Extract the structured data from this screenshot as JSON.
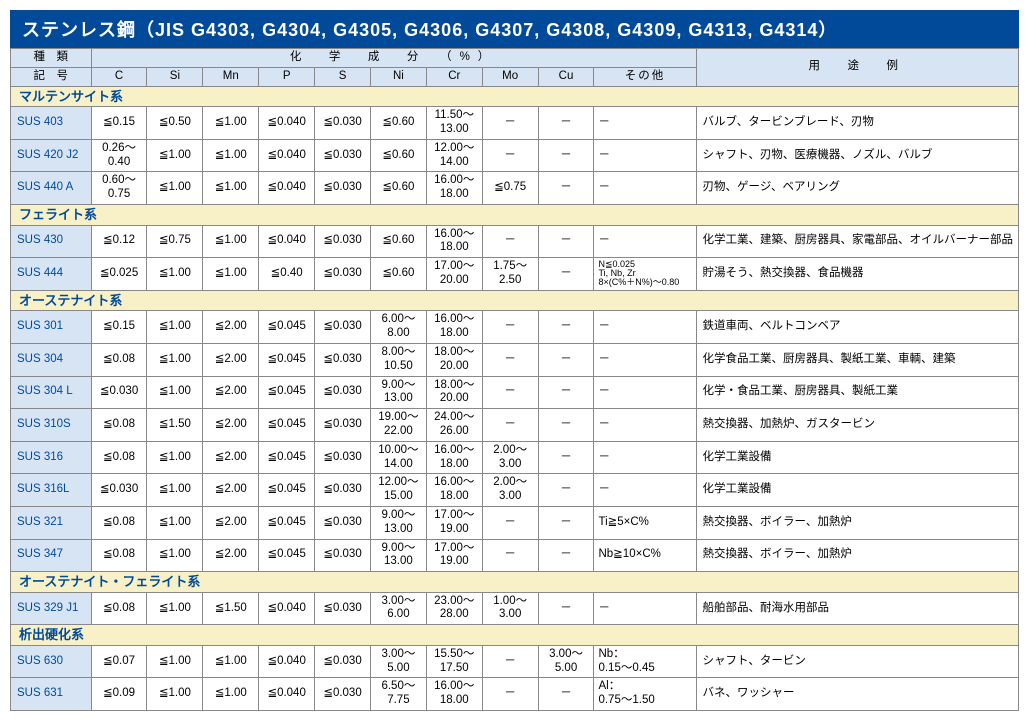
{
  "title": "ステンレス鋼（JIS G4303, G4304, G4305, G4306, G4307, G4308, G4309, G4313, G4314）",
  "colors": {
    "title_bg": "#004a99",
    "title_fg": "#ffffff",
    "header_bg": "#d6e4f4",
    "group_bg": "#f8f0c6",
    "border": "#888888",
    "accent_text": "#004a99"
  },
  "headers": {
    "type": "種　類",
    "chem": "化　学　成　分　（%）",
    "use": "用　途　例",
    "code": "記　号",
    "cols": [
      "C",
      "Si",
      "Mn",
      "P",
      "S",
      "Ni",
      "Cr",
      "Mo",
      "Cu",
      "その他"
    ]
  },
  "groups": [
    {
      "name": "マルテンサイト系",
      "rows": [
        {
          "code": "SUS 403",
          "C": "≦0.15",
          "Si": "≦0.50",
          "Mn": "≦1.00",
          "P": "≦0.040",
          "S": "≦0.030",
          "Ni": "≦0.60",
          "Cr": "11.50～\n13.00",
          "Mo": "－",
          "Cu": "－",
          "Other": "－",
          "use": "バルブ、タービンブレード、刃物"
        },
        {
          "code": "SUS 420 J2",
          "C": "0.26～\n0.40",
          "Si": "≦1.00",
          "Mn": "≦1.00",
          "P": "≦0.040",
          "S": "≦0.030",
          "Ni": "≦0.60",
          "Cr": "12.00～\n14.00",
          "Mo": "－",
          "Cu": "－",
          "Other": "－",
          "use": "シャフト、刃物、医療機器、ノズル、バルブ"
        },
        {
          "code": "SUS 440 A",
          "C": "0.60～\n0.75",
          "Si": "≦1.00",
          "Mn": "≦1.00",
          "P": "≦0.040",
          "S": "≦0.030",
          "Ni": "≦0.60",
          "Cr": "16.00～\n18.00",
          "Mo": "≦0.75",
          "Cu": "－",
          "Other": "－",
          "use": "刃物、ゲージ、ベアリング"
        }
      ]
    },
    {
      "name": "フェライト系",
      "rows": [
        {
          "code": "SUS 430",
          "C": "≦0.12",
          "Si": "≦0.75",
          "Mn": "≦1.00",
          "P": "≦0.040",
          "S": "≦0.030",
          "Ni": "≦0.60",
          "Cr": "16.00～\n18.00",
          "Mo": "－",
          "Cu": "－",
          "Other": "－",
          "use": "化学工業、建築、厨房器具、家電部品、オイルバーナー部品"
        },
        {
          "code": "SUS 444",
          "C": "≦0.025",
          "Si": "≦1.00",
          "Mn": "≦1.00",
          "P": "≦0.40",
          "S": "≦0.030",
          "Ni": "≦0.60",
          "Cr": "17.00～\n20.00",
          "Mo": "1.75～\n2.50",
          "Cu": "－",
          "Other": "N≦0.025\nTi, Nb, Zr\n8×(C%＋N%)～0.80",
          "other_small": true,
          "use": "貯湯そう、熱交換器、食品機器"
        }
      ]
    },
    {
      "name": "オーステナイト系",
      "rows": [
        {
          "code": "SUS 301",
          "C": "≦0.15",
          "Si": "≦1.00",
          "Mn": "≦2.00",
          "P": "≦0.045",
          "S": "≦0.030",
          "Ni": "6.00～\n8.00",
          "Cr": "16.00～\n18.00",
          "Mo": "－",
          "Cu": "－",
          "Other": "－",
          "use": "鉄道車両、ベルトコンベア"
        },
        {
          "code": "SUS 304",
          "C": "≦0.08",
          "Si": "≦1.00",
          "Mn": "≦2.00",
          "P": "≦0.045",
          "S": "≦0.030",
          "Ni": "8.00～\n10.50",
          "Cr": "18.00～\n20.00",
          "Mo": "－",
          "Cu": "－",
          "Other": "－",
          "use": "化学食品工業、厨房器具、製紙工業、車輌、建築"
        },
        {
          "code": "SUS 304 L",
          "C": "≦0.030",
          "Si": "≦1.00",
          "Mn": "≦2.00",
          "P": "≦0.045",
          "S": "≦0.030",
          "Ni": "9.00～\n13.00",
          "Cr": "18.00～\n20.00",
          "Mo": "－",
          "Cu": "－",
          "Other": "－",
          "use": "化学・食品工業、厨房器具、製紙工業"
        },
        {
          "code": "SUS 310S",
          "C": "≦0.08",
          "Si": "≦1.50",
          "Mn": "≦2.00",
          "P": "≦0.045",
          "S": "≦0.030",
          "Ni": "19.00～\n22.00",
          "Cr": "24.00～\n26.00",
          "Mo": "－",
          "Cu": "－",
          "Other": "－",
          "use": "熱交換器、加熱炉、ガスタービン"
        },
        {
          "code": "SUS 316",
          "C": "≦0.08",
          "Si": "≦1.00",
          "Mn": "≦2.00",
          "P": "≦0.045",
          "S": "≦0.030",
          "Ni": "10.00～\n14.00",
          "Cr": "16.00～\n18.00",
          "Mo": "2.00～\n3.00",
          "Cu": "－",
          "Other": "－",
          "use": "化学工業設備"
        },
        {
          "code": "SUS 316L",
          "C": "≦0.030",
          "Si": "≦1.00",
          "Mn": "≦2.00",
          "P": "≦0.045",
          "S": "≦0.030",
          "Ni": "12.00～\n15.00",
          "Cr": "16.00～\n18.00",
          "Mo": "2.00～\n3.00",
          "Cu": "－",
          "Other": "－",
          "use": "化学工業設備"
        },
        {
          "code": "SUS 321",
          "C": "≦0.08",
          "Si": "≦1.00",
          "Mn": "≦2.00",
          "P": "≦0.045",
          "S": "≦0.030",
          "Ni": "9.00～\n13.00",
          "Cr": "17.00～\n19.00",
          "Mo": "－",
          "Cu": "－",
          "Other": "Ti≧5×C%",
          "use": "熱交換器、ボイラー、加熱炉"
        },
        {
          "code": "SUS 347",
          "C": "≦0.08",
          "Si": "≦1.00",
          "Mn": "≦2.00",
          "P": "≦0.045",
          "S": "≦0.030",
          "Ni": "9.00～\n13.00",
          "Cr": "17.00～\n19.00",
          "Mo": "－",
          "Cu": "－",
          "Other": "Nb≧10×C%",
          "use": "熱交換器、ボイラー、加熱炉"
        }
      ]
    },
    {
      "name": "オーステナイト・フェライト系",
      "rows": [
        {
          "code": "SUS 329 J1",
          "C": "≦0.08",
          "Si": "≦1.00",
          "Mn": "≦1.50",
          "P": "≦0.040",
          "S": "≦0.030",
          "Ni": "3.00～\n6.00",
          "Cr": "23.00～\n28.00",
          "Mo": "1.00～\n3.00",
          "Cu": "－",
          "Other": "－",
          "use": "船舶部品、耐海水用部品"
        }
      ]
    },
    {
      "name": "析出硬化系",
      "rows": [
        {
          "code": "SUS 630",
          "C": "≦0.07",
          "Si": "≦1.00",
          "Mn": "≦1.00",
          "P": "≦0.040",
          "S": "≦0.030",
          "Ni": "3.00～\n5.00",
          "Cr": "15.50～\n17.50",
          "Mo": "－",
          "Cu": "3.00～\n5.00",
          "Other": "Nb：\n0.15～0.45",
          "use": "シャフト、タービン"
        },
        {
          "code": "SUS 631",
          "C": "≦0.09",
          "Si": "≦1.00",
          "Mn": "≦1.00",
          "P": "≦0.040",
          "S": "≦0.030",
          "Ni": "6.50～\n7.75",
          "Cr": "16.00～\n18.00",
          "Mo": "－",
          "Cu": "－",
          "Other": "Al：\n0.75～1.50",
          "use": "バネ、ワッシャー"
        }
      ]
    }
  ]
}
